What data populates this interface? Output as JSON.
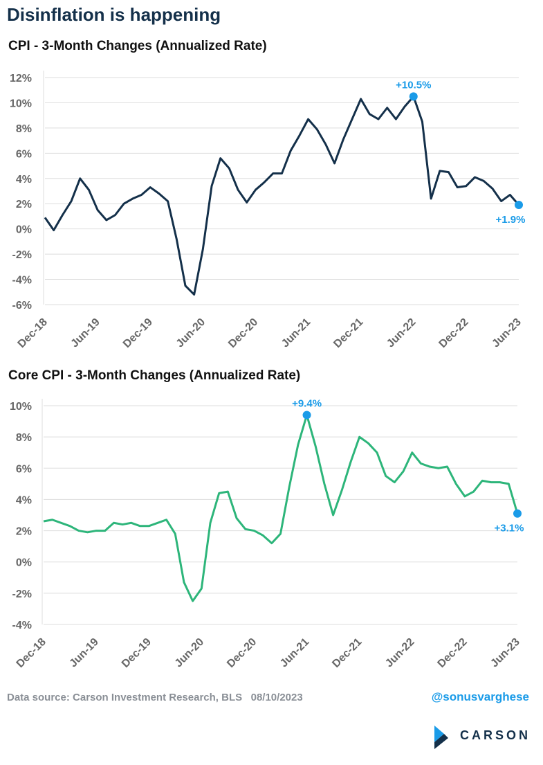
{
  "title": "Disinflation is happening",
  "chart_data": [
    {
      "type": "line",
      "title": "CPI - 3-Month Changes (Annualized Rate)",
      "categories": [
        "Dec-18",
        null,
        null,
        null,
        null,
        null,
        "Jun-19",
        null,
        null,
        null,
        null,
        null,
        "Dec-19",
        null,
        null,
        null,
        null,
        null,
        "Jun-20",
        null,
        null,
        null,
        null,
        null,
        "Dec-20",
        null,
        null,
        null,
        null,
        null,
        "Jun-21",
        null,
        null,
        null,
        null,
        null,
        "Dec-21",
        null,
        null,
        null,
        null,
        null,
        "Jun-22",
        null,
        null,
        null,
        null,
        null,
        "Dec-22",
        null,
        null,
        null,
        null,
        null,
        "Jun-23"
      ],
      "series": [
        {
          "name": "CPI",
          "color": "#14304a",
          "values": [
            0.9,
            -0.1,
            1.1,
            2.2,
            4.0,
            3.1,
            1.5,
            0.7,
            1.1,
            2.0,
            2.4,
            2.7,
            3.3,
            2.8,
            2.2,
            -0.8,
            -4.5,
            -5.2,
            -1.6,
            3.4,
            5.6,
            4.8,
            3.1,
            2.1,
            3.1,
            3.7,
            4.4,
            4.4,
            6.2,
            7.4,
            8.7,
            7.9,
            6.7,
            5.2,
            7.1,
            8.7,
            10.3,
            9.1,
            8.7,
            9.6,
            8.7,
            9.7,
            10.5,
            8.5,
            2.4,
            4.6,
            4.5,
            3.3,
            3.4,
            4.1,
            3.8,
            3.2,
            2.2,
            2.7,
            1.9
          ],
          "value_labels": [
            null,
            null,
            null,
            null,
            null,
            null,
            null,
            null,
            null,
            null,
            null,
            null,
            null,
            null,
            null,
            null,
            null,
            null,
            null,
            null,
            null,
            null,
            null,
            null,
            null,
            null,
            null,
            null,
            null,
            null,
            null,
            null,
            null,
            null,
            null,
            null,
            null,
            null,
            null,
            null,
            null,
            null,
            "+10.5%",
            null,
            null,
            null,
            null,
            null,
            null,
            null,
            null,
            null,
            null,
            null,
            "+1.9%"
          ]
        }
      ],
      "marker_color": "#1a9be8",
      "ylim": [
        -6,
        12
      ],
      "yticks": [
        {
          "value": -6,
          "label": "-6%"
        },
        {
          "value": -4,
          "label": "-4%"
        },
        {
          "value": -2,
          "label": "-2%"
        },
        {
          "value": 0,
          "label": "0%"
        },
        {
          "value": 2,
          "label": "2%"
        },
        {
          "value": 4,
          "label": "4%"
        },
        {
          "value": 6,
          "label": "6%"
        },
        {
          "value": 8,
          "label": "8%"
        },
        {
          "value": 10,
          "label": "10%"
        },
        {
          "value": 12,
          "label": "12%"
        }
      ],
      "grid": true
    },
    {
      "type": "line",
      "title": "Core CPI - 3-Month Changes (Annualized Rate)",
      "categories": [
        "Dec-18",
        null,
        null,
        null,
        null,
        null,
        "Jun-19",
        null,
        null,
        null,
        null,
        null,
        "Dec-19",
        null,
        null,
        null,
        null,
        null,
        "Jun-20",
        null,
        null,
        null,
        null,
        null,
        "Dec-20",
        null,
        null,
        null,
        null,
        null,
        "Jun-21",
        null,
        null,
        null,
        null,
        null,
        "Dec-21",
        null,
        null,
        null,
        null,
        null,
        "Jun-22",
        null,
        null,
        null,
        null,
        null,
        "Dec-22",
        null,
        null,
        null,
        null,
        null,
        "Jun-23"
      ],
      "series": [
        {
          "name": "Core CPI",
          "color": "#2db57a",
          "values": [
            2.6,
            2.7,
            2.5,
            2.3,
            2.0,
            1.9,
            2.0,
            2.0,
            2.5,
            2.4,
            2.5,
            2.3,
            2.3,
            2.5,
            2.7,
            1.8,
            -1.3,
            -2.5,
            -1.7,
            2.5,
            4.4,
            4.5,
            2.8,
            2.1,
            2.0,
            1.7,
            1.2,
            1.8,
            4.8,
            7.5,
            9.4,
            7.4,
            5.0,
            3.0,
            4.6,
            6.4,
            8.0,
            7.6,
            7.0,
            5.5,
            5.1,
            5.8,
            7.0,
            6.3,
            6.1,
            6.0,
            6.1,
            5.0,
            4.2,
            4.5,
            5.2,
            5.1,
            5.1,
            5.0,
            3.1
          ],
          "value_labels": [
            null,
            null,
            null,
            null,
            null,
            null,
            null,
            null,
            null,
            null,
            null,
            null,
            null,
            null,
            null,
            null,
            null,
            null,
            null,
            null,
            null,
            null,
            null,
            null,
            null,
            null,
            null,
            null,
            null,
            null,
            "+9.4%",
            null,
            null,
            null,
            null,
            null,
            null,
            null,
            null,
            null,
            null,
            null,
            null,
            null,
            null,
            null,
            null,
            null,
            null,
            null,
            null,
            null,
            null,
            null,
            "+3.1%"
          ]
        }
      ],
      "marker_color": "#1a9be8",
      "ylim": [
        -4,
        10
      ],
      "yticks": [
        {
          "value": -4,
          "label": "-4%"
        },
        {
          "value": -2,
          "label": "-2%"
        },
        {
          "value": 0,
          "label": "0%"
        },
        {
          "value": 2,
          "label": "2%"
        },
        {
          "value": 4,
          "label": "4%"
        },
        {
          "value": 6,
          "label": "6%"
        },
        {
          "value": 8,
          "label": "8%"
        },
        {
          "value": 10,
          "label": "10%"
        }
      ],
      "grid": true
    }
  ],
  "footer": {
    "source": "Data source: Carson Investment Research, BLS   08/10/2023",
    "handle": "@sonusvarghese",
    "logo": "CARSON"
  }
}
